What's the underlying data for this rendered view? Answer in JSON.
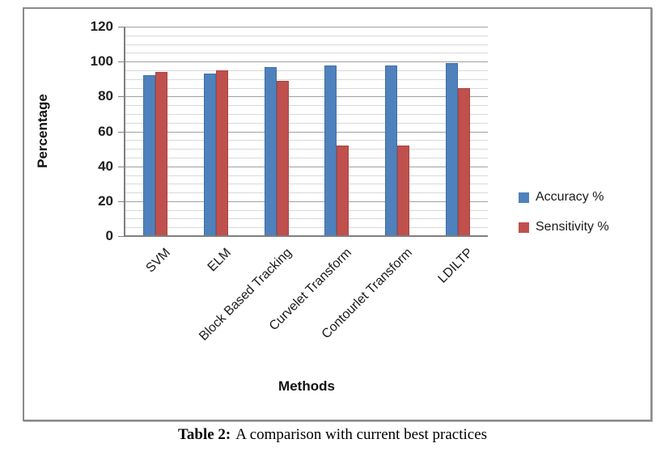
{
  "figure": {
    "caption": {
      "label": "Table 2:",
      "text": "A comparison with current best practices"
    }
  },
  "chart_data": {
    "type": "bar",
    "title": "",
    "xlabel": "Methods",
    "ylabel": "Percentage",
    "ylim": [
      0,
      120
    ],
    "y_ticks": [
      0,
      20,
      40,
      60,
      80,
      100,
      120
    ],
    "y_minor_step": 5,
    "grid": "horizontal major + minor",
    "legend_position": "right",
    "categories": [
      "SVM",
      "ELM",
      "Block Based Tracking",
      "Curvelet Transform",
      "Contourlet Transform",
      "LDILTP"
    ],
    "series": [
      {
        "name": "Accuracy %",
        "color": "#4F81BD",
        "border": "#416FA6",
        "values": [
          92,
          93,
          97,
          98,
          98,
          99
        ]
      },
      {
        "name": "Sensitivity %",
        "color": "#C0504D",
        "border": "#A8453F",
        "values": [
          94,
          95,
          89,
          52,
          52,
          85
        ]
      }
    ]
  }
}
